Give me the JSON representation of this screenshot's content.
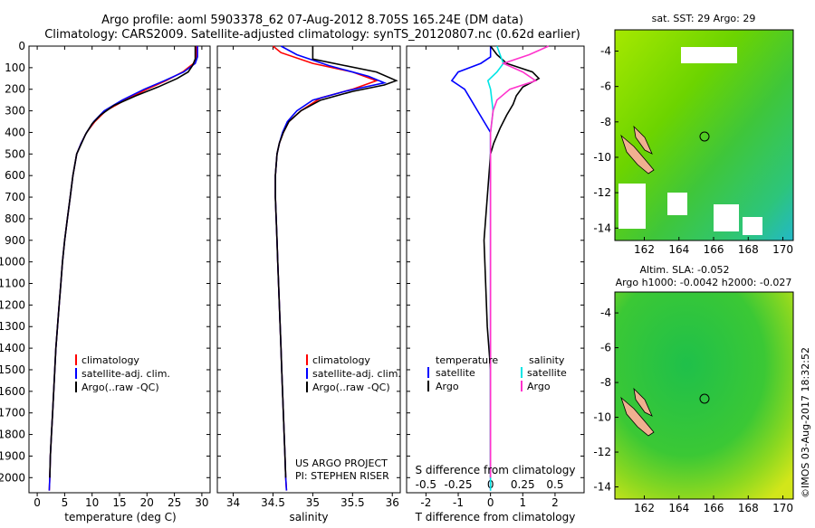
{
  "header": {
    "line1": "Argo profile: aoml 5903378_62 07-Aug-2012 8.705S 165.24E (DM data)",
    "line2": "Climatology: CARS2009. Satellite-adjusted climatology: synTS_20120807.nc (0.62d earlier)"
  },
  "colors": {
    "clim": "#ff0000",
    "sat": "#0000ff",
    "argo": "#000000",
    "sal_sat": "#00e5e5",
    "sal_argo": "#ff33cc"
  },
  "depth_axis": {
    "ticks": [
      0,
      100,
      200,
      300,
      400,
      500,
      600,
      700,
      800,
      900,
      1000,
      1100,
      1200,
      1300,
      1400,
      1500,
      1600,
      1700,
      1800,
      1900,
      2000
    ],
    "range": [
      0,
      2070
    ]
  },
  "chart_data": [
    {
      "type": "line",
      "name": "temperature",
      "xlabel": "temperature (deg C)",
      "xticks": [
        0,
        5,
        10,
        15,
        20,
        25,
        30
      ],
      "xlim": [
        -1.5,
        31.5
      ],
      "legend": [
        "climatology",
        "satellite-adj. clim.",
        "Argo(..raw -QC)"
      ],
      "series": [
        {
          "name": "climatology",
          "color": "clim",
          "points": [
            [
              29.0,
              0
            ],
            [
              29.0,
              50
            ],
            [
              28.5,
              80
            ],
            [
              26.5,
              120
            ],
            [
              23.5,
              160
            ],
            [
              20.0,
              200
            ],
            [
              16.0,
              250
            ],
            [
              12.5,
              300
            ],
            [
              10.5,
              350
            ],
            [
              9.0,
              400
            ],
            [
              8.0,
              450
            ],
            [
              7.2,
              500
            ],
            [
              6.5,
              600
            ],
            [
              6.0,
              700
            ],
            [
              5.5,
              800
            ],
            [
              5.0,
              900
            ],
            [
              4.6,
              1000
            ],
            [
              4.3,
              1100
            ],
            [
              4.0,
              1200
            ],
            [
              3.7,
              1300
            ],
            [
              3.4,
              1400
            ],
            [
              3.2,
              1500
            ],
            [
              3.0,
              1600
            ],
            [
              2.8,
              1700
            ],
            [
              2.6,
              1800
            ],
            [
              2.4,
              1900
            ],
            [
              2.3,
              2000
            ],
            [
              2.2,
              2060
            ]
          ]
        },
        {
          "name": "satellite",
          "color": "sat",
          "points": [
            [
              29.2,
              0
            ],
            [
              29.2,
              50
            ],
            [
              28.8,
              80
            ],
            [
              26.7,
              120
            ],
            [
              23.2,
              160
            ],
            [
              19.5,
              200
            ],
            [
              15.5,
              250
            ],
            [
              12.2,
              300
            ],
            [
              10.3,
              350
            ],
            [
              9.0,
              400
            ],
            [
              8.0,
              450
            ],
            [
              7.2,
              500
            ],
            [
              6.5,
              600
            ],
            [
              6.0,
              700
            ],
            [
              5.5,
              800
            ],
            [
              5.0,
              900
            ],
            [
              4.6,
              1000
            ],
            [
              4.3,
              1100
            ],
            [
              4.0,
              1200
            ],
            [
              3.7,
              1300
            ],
            [
              3.4,
              1400
            ],
            [
              3.2,
              1500
            ],
            [
              3.0,
              1600
            ],
            [
              2.8,
              1700
            ],
            [
              2.6,
              1800
            ],
            [
              2.4,
              1900
            ],
            [
              2.3,
              2000
            ],
            [
              2.2,
              2060
            ]
          ]
        },
        {
          "name": "argo",
          "color": "argo",
          "points": [
            [
              28.8,
              0
            ],
            [
              28.8,
              60
            ],
            [
              28.3,
              90
            ],
            [
              27.5,
              120
            ],
            [
              25.5,
              150
            ],
            [
              22.0,
              190
            ],
            [
              18.0,
              230
            ],
            [
              14.0,
              275
            ],
            [
              11.5,
              320
            ],
            [
              10.0,
              360
            ],
            [
              8.8,
              410
            ],
            [
              7.9,
              460
            ],
            [
              7.2,
              500
            ],
            [
              6.5,
              600
            ],
            [
              6.0,
              700
            ],
            [
              5.5,
              800
            ],
            [
              5.0,
              900
            ],
            [
              4.6,
              1000
            ],
            [
              4.3,
              1100
            ],
            [
              4.0,
              1200
            ],
            [
              3.7,
              1300
            ],
            [
              3.4,
              1400
            ],
            [
              3.2,
              1500
            ],
            [
              3.0,
              1600
            ],
            [
              2.8,
              1700
            ],
            [
              2.6,
              1800
            ],
            [
              2.4,
              1900
            ],
            [
              2.3,
              2000
            ]
          ]
        }
      ]
    },
    {
      "type": "line",
      "name": "salinity",
      "xlabel": "salinity",
      "xticks": [
        34,
        34.5,
        35,
        35.5,
        36
      ],
      "xtick_labels": [
        "34",
        "34.5",
        "35",
        "35.5",
        "36"
      ],
      "xlim": [
        33.8,
        36.1
      ],
      "legend": [
        "climatology",
        "satellite-adj. clim.",
        "Argo(..raw -QC)"
      ],
      "annotation": [
        "US ARGO PROJECT",
        "PI: STEPHEN RISER"
      ],
      "series": [
        {
          "name": "climatology",
          "color": "clim",
          "points": [
            [
              34.5,
              0
            ],
            [
              34.6,
              30
            ],
            [
              35.0,
              80
            ],
            [
              35.5,
              120
            ],
            [
              35.8,
              160
            ],
            [
              35.5,
              200
            ],
            [
              35.1,
              240
            ],
            [
              34.85,
              300
            ],
            [
              34.7,
              350
            ],
            [
              34.63,
              400
            ],
            [
              34.58,
              450
            ],
            [
              34.55,
              500
            ],
            [
              34.53,
              600
            ],
            [
              34.53,
              700
            ],
            [
              34.54,
              800
            ],
            [
              34.55,
              900
            ],
            [
              34.56,
              1000
            ],
            [
              34.57,
              1100
            ],
            [
              34.58,
              1200
            ],
            [
              34.59,
              1300
            ],
            [
              34.6,
              1400
            ],
            [
              34.61,
              1500
            ],
            [
              34.62,
              1600
            ],
            [
              34.63,
              1700
            ],
            [
              34.64,
              1800
            ],
            [
              34.65,
              1900
            ],
            [
              34.66,
              2000
            ],
            [
              34.67,
              2060
            ]
          ]
        },
        {
          "name": "satellite",
          "color": "sat",
          "points": [
            [
              34.6,
              0
            ],
            [
              34.8,
              40
            ],
            [
              35.2,
              90
            ],
            [
              35.7,
              140
            ],
            [
              35.9,
              170
            ],
            [
              35.4,
              210
            ],
            [
              35.0,
              250
            ],
            [
              34.8,
              300
            ],
            [
              34.68,
              350
            ],
            [
              34.62,
              400
            ],
            [
              34.58,
              450
            ],
            [
              34.55,
              500
            ],
            [
              34.53,
              600
            ],
            [
              34.53,
              700
            ],
            [
              34.54,
              800
            ],
            [
              34.55,
              900
            ],
            [
              34.56,
              1000
            ],
            [
              34.57,
              1100
            ],
            [
              34.58,
              1200
            ],
            [
              34.59,
              1300
            ],
            [
              34.6,
              1400
            ],
            [
              34.61,
              1500
            ],
            [
              34.62,
              1600
            ],
            [
              34.63,
              1700
            ],
            [
              34.64,
              1800
            ],
            [
              34.65,
              1900
            ],
            [
              34.66,
              2000
            ],
            [
              34.67,
              2060
            ]
          ]
        },
        {
          "name": "argo",
          "color": "argo",
          "points": [
            [
              35.0,
              0
            ],
            [
              35.0,
              60
            ],
            [
              35.4,
              90
            ],
            [
              35.8,
              120
            ],
            [
              36.05,
              160
            ],
            [
              35.9,
              180
            ],
            [
              35.5,
              210
            ],
            [
              35.1,
              250
            ],
            [
              34.85,
              300
            ],
            [
              34.7,
              350
            ],
            [
              34.63,
              400
            ],
            [
              34.58,
              450
            ],
            [
              34.55,
              500
            ],
            [
              34.53,
              600
            ],
            [
              34.53,
              700
            ],
            [
              34.54,
              800
            ],
            [
              34.55,
              900
            ],
            [
              34.56,
              1000
            ],
            [
              34.57,
              1100
            ],
            [
              34.58,
              1200
            ],
            [
              34.59,
              1300
            ],
            [
              34.6,
              1400
            ],
            [
              34.61,
              1500
            ],
            [
              34.62,
              1600
            ],
            [
              34.63,
              1700
            ],
            [
              34.64,
              1800
            ],
            [
              34.65,
              1900
            ],
            [
              34.66,
              2000
            ]
          ]
        }
      ]
    },
    {
      "type": "line",
      "name": "differences",
      "xlabel": "T difference from climatology",
      "xlabel_top": "S difference from climatology",
      "xticks": [
        -2,
        -1,
        0,
        1,
        2
      ],
      "xlim": [
        -2.6,
        2.9
      ],
      "sticks": [
        -0.5,
        -0.25,
        0,
        0.25,
        0.5
      ],
      "stick_labels": [
        "-0.5",
        "-0.25",
        "0",
        "0.25",
        "0.5"
      ],
      "slim": [
        -0.65,
        0.725
      ],
      "legend_t_title": "temperature",
      "legend_s_title": "salinity",
      "legend": [
        "satellite",
        "Argo",
        "satellite",
        "Argo"
      ],
      "series": [
        {
          "name": "T satellite",
          "color": "sat",
          "axis": "T",
          "points": [
            [
              0,
              0
            ],
            [
              0,
              50
            ],
            [
              -0.3,
              80
            ],
            [
              -1.0,
              120
            ],
            [
              -1.2,
              160
            ],
            [
              -0.8,
              200
            ],
            [
              -0.6,
              250
            ],
            [
              -0.4,
              300
            ],
            [
              -0.2,
              350
            ],
            [
              0,
              400
            ],
            [
              0,
              500
            ],
            [
              0,
              2060
            ]
          ]
        },
        {
          "name": "T argo",
          "color": "argo",
          "axis": "T",
          "points": [
            [
              0,
              0
            ],
            [
              0.2,
              40
            ],
            [
              0.5,
              80
            ],
            [
              1.3,
              120
            ],
            [
              1.5,
              150
            ],
            [
              1.0,
              190
            ],
            [
              0.8,
              230
            ],
            [
              0.7,
              270
            ],
            [
              0.5,
              320
            ],
            [
              0.3,
              380
            ],
            [
              0.1,
              450
            ],
            [
              0,
              500
            ],
            [
              -0.1,
              700
            ],
            [
              -0.2,
              900
            ],
            [
              -0.15,
              1100
            ],
            [
              -0.1,
              1300
            ],
            [
              0,
              1500
            ],
            [
              0,
              2000
            ]
          ]
        },
        {
          "name": "S satellite",
          "color": "sal_sat",
          "axis": "S",
          "points": [
            [
              0.05,
              0
            ],
            [
              0.08,
              50
            ],
            [
              0.1,
              80
            ],
            [
              0.05,
              120
            ],
            [
              -0.02,
              160
            ],
            [
              0,
              200
            ],
            [
              0.02,
              300
            ],
            [
              0,
              400
            ],
            [
              0,
              600
            ],
            [
              0,
              2060
            ]
          ]
        },
        {
          "name": "S argo",
          "color": "sal_argo",
          "axis": "S",
          "points": [
            [
              0.45,
              0
            ],
            [
              0.3,
              40
            ],
            [
              0.1,
              80
            ],
            [
              0.25,
              120
            ],
            [
              0.35,
              160
            ],
            [
              0.15,
              200
            ],
            [
              0.05,
              250
            ],
            [
              0.02,
              300
            ],
            [
              0,
              400
            ],
            [
              0,
              2000
            ]
          ]
        }
      ]
    }
  ],
  "maps": {
    "sst": {
      "title": "sat. SST: 29 Argo: 29",
      "yticks": [
        -4,
        -6,
        -8,
        -10,
        -12,
        -14
      ],
      "xticks": [
        162,
        164,
        166,
        168,
        170
      ]
    },
    "sla": {
      "title1": "Altim. SLA: -0.052",
      "title2": "Argo h1000: -0.0042 h2000: -0.027",
      "yticks": [
        -4,
        -6,
        -8,
        -10,
        -12,
        -14
      ],
      "xticks": [
        162,
        164,
        166,
        168,
        170
      ]
    }
  },
  "footer": {
    "stamp": "©IMOS 03-Aug-2017 18:32:52"
  }
}
